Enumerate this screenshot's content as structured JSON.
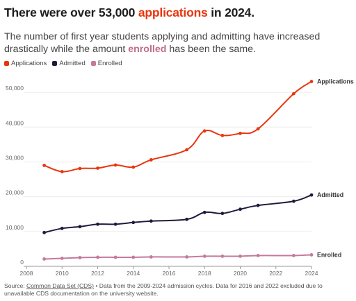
{
  "header": {
    "title_pre": "There were over 53,000 ",
    "title_highlight": "applications",
    "title_post": " in 2024.",
    "subtitle_pre": "The number of first year students applying and admitting have increased drastically while the amount ",
    "subtitle_highlight": "enrolled",
    "subtitle_post": " has been the same."
  },
  "source": {
    "prefix": "Source: ",
    "link": "Common Data Set (CDS)",
    "rest": " • Data from the 2009-2024 admission cycles. Data for 2016 and 2022 excluded due to unavailable CDS documentation on the university website."
  },
  "colors": {
    "applications": "#e8360d",
    "admitted": "#1f1a3d",
    "enrolled": "#c47a9b"
  },
  "chart_data": {
    "type": "line",
    "x_ticks": [
      "2008",
      "2010",
      "2012",
      "2014",
      "2016",
      "2018",
      "2020",
      "2022",
      "2024"
    ],
    "y_ticks": [
      "0",
      "10,000",
      "20,000",
      "30,000",
      "40,000",
      "50,000"
    ],
    "xlim": [
      2008,
      2024
    ],
    "ylim": [
      0,
      55000
    ],
    "grid": true,
    "legend": "top-left",
    "series": [
      {
        "name": "Applications",
        "color": "#e8360d",
        "x": [
          2009,
          2010,
          2011,
          2012,
          2013,
          2014,
          2015,
          2017,
          2018,
          2019,
          2020,
          2021,
          2023,
          2024
        ],
        "y": [
          29000,
          27200,
          28100,
          28200,
          29100,
          28500,
          30600,
          33500,
          38900,
          37600,
          38200,
          39500,
          49600,
          53100
        ]
      },
      {
        "name": "Admitted",
        "color": "#1f1a3d",
        "x": [
          2009,
          2010,
          2011,
          2012,
          2013,
          2014,
          2015,
          2017,
          2018,
          2019,
          2020,
          2021,
          2023,
          2024
        ],
        "y": [
          9700,
          10900,
          11400,
          12100,
          12100,
          12600,
          13000,
          13500,
          15500,
          15200,
          16400,
          17500,
          18700,
          20500
        ]
      },
      {
        "name": "Enrolled",
        "color": "#c47a9b",
        "x": [
          2009,
          2010,
          2011,
          2012,
          2013,
          2014,
          2015,
          2017,
          2018,
          2019,
          2020,
          2021,
          2023,
          2024
        ],
        "y": [
          2100,
          2300,
          2500,
          2600,
          2600,
          2600,
          2700,
          2700,
          2900,
          2900,
          2900,
          3100,
          3100,
          3300
        ]
      }
    ]
  }
}
